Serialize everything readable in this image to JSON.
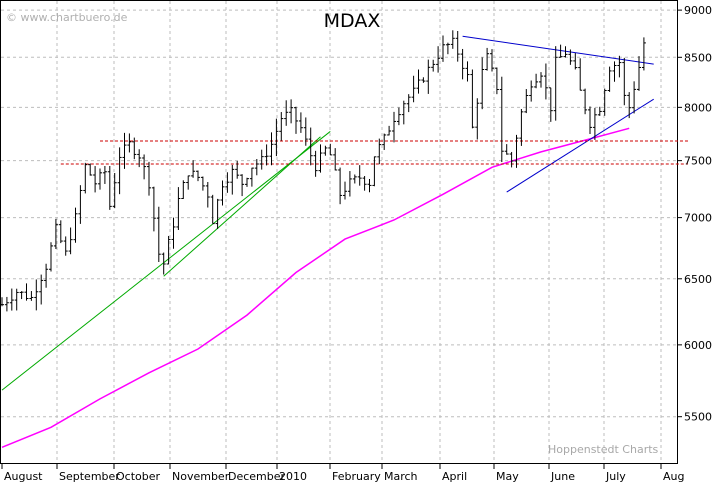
{
  "chart_data": {
    "type": "ohlc",
    "title": "MDAX",
    "watermark": "© www.chartbuero.de",
    "credit": "Hoppenstedt Charts",
    "y_scale": "log",
    "ylim": [
      5200,
      9100
    ],
    "y_ticks": [
      9000,
      8500,
      8000,
      7500,
      7000,
      6500,
      6000,
      5500
    ],
    "x_month_labels": [
      "August",
      "September",
      "October",
      "November",
      "December",
      "2010",
      "February",
      "March",
      "April",
      "May",
      "June",
      "July",
      "Aug"
    ],
    "grid": true,
    "series": [
      {
        "kind": "price_bars",
        "color": "#000000",
        "anchors": [
          [
            0,
            6300
          ],
          [
            3,
            6400
          ],
          [
            6,
            6350
          ],
          [
            9,
            6600
          ],
          [
            11,
            6900
          ],
          [
            13,
            6700
          ],
          [
            15,
            7000
          ],
          [
            17,
            7450
          ],
          [
            19,
            7300
          ],
          [
            21,
            7400
          ],
          [
            22,
            7100
          ],
          [
            24,
            7550
          ],
          [
            26,
            7650
          ],
          [
            28,
            7550
          ],
          [
            30,
            7300
          ],
          [
            32,
            6700
          ],
          [
            33,
            6620
          ],
          [
            35,
            6950
          ],
          [
            36,
            7150
          ],
          [
            38,
            7400
          ],
          [
            40,
            7350
          ],
          [
            42,
            7200
          ],
          [
            43,
            6980
          ],
          [
            45,
            7300
          ],
          [
            47,
            7400
          ],
          [
            49,
            7300
          ],
          [
            51,
            7450
          ],
          [
            53,
            7500
          ],
          [
            55,
            7650
          ],
          [
            57,
            7900
          ],
          [
            59,
            7950
          ],
          [
            61,
            7800
          ],
          [
            63,
            7550
          ],
          [
            64,
            7450
          ],
          [
            66,
            7600
          ],
          [
            67,
            7550
          ],
          [
            69,
            7200
          ],
          [
            71,
            7300
          ],
          [
            73,
            7350
          ],
          [
            75,
            7300
          ],
          [
            76,
            7550
          ],
          [
            78,
            7700
          ],
          [
            80,
            7900
          ],
          [
            82,
            8050
          ],
          [
            84,
            8150
          ],
          [
            86,
            8300
          ],
          [
            88,
            8450
          ],
          [
            90,
            8600
          ],
          [
            92,
            8650
          ],
          [
            93,
            8550
          ],
          [
            95,
            8300
          ],
          [
            96,
            7800
          ],
          [
            98,
            8350
          ],
          [
            99,
            8500
          ],
          [
            101,
            8200
          ],
          [
            102,
            7600
          ],
          [
            104,
            7500
          ],
          [
            106,
            7950
          ],
          [
            108,
            8250
          ],
          [
            110,
            8350
          ],
          [
            112,
            8000
          ],
          [
            113,
            8450
          ],
          [
            115,
            8550
          ],
          [
            117,
            8350
          ],
          [
            118,
            8150
          ],
          [
            120,
            7850
          ],
          [
            122,
            8000
          ],
          [
            124,
            8400
          ],
          [
            126,
            8450
          ],
          [
            127,
            8100
          ],
          [
            128,
            8000
          ],
          [
            130,
            8400
          ],
          [
            131,
            8650
          ]
        ]
      },
      {
        "kind": "moving_average",
        "color": "#ff00ff",
        "points": [
          [
            0,
            5300
          ],
          [
            10,
            5430
          ],
          [
            20,
            5620
          ],
          [
            30,
            5800
          ],
          [
            40,
            5970
          ],
          [
            50,
            6220
          ],
          [
            60,
            6550
          ],
          [
            70,
            6820
          ],
          [
            80,
            6980
          ],
          [
            90,
            7200
          ],
          [
            100,
            7440
          ],
          [
            110,
            7580
          ],
          [
            120,
            7700
          ],
          [
            128,
            7800
          ]
        ]
      }
    ],
    "trendlines": [
      {
        "color": "#00aa00",
        "dash": false,
        "points": [
          [
            0,
            5680
          ],
          [
            67,
            7770
          ]
        ]
      },
      {
        "color": "#00aa00",
        "dash": false,
        "points": [
          [
            33,
            6520
          ],
          [
            65,
            7720
          ]
        ]
      },
      {
        "color": "#0000cc",
        "dash": false,
        "points": [
          [
            94,
            8720
          ],
          [
            133,
            8430
          ]
        ]
      },
      {
        "color": "#0000cc",
        "dash": false,
        "points": [
          [
            103,
            7220
          ],
          [
            133,
            8080
          ]
        ]
      },
      {
        "color": "#cc0000",
        "dash": true,
        "points": [
          [
            20,
            7680
          ],
          [
            140,
            7680
          ]
        ]
      },
      {
        "color": "#cc0000",
        "dash": true,
        "points": [
          [
            12,
            7470
          ],
          [
            140,
            7470
          ]
        ]
      }
    ]
  }
}
